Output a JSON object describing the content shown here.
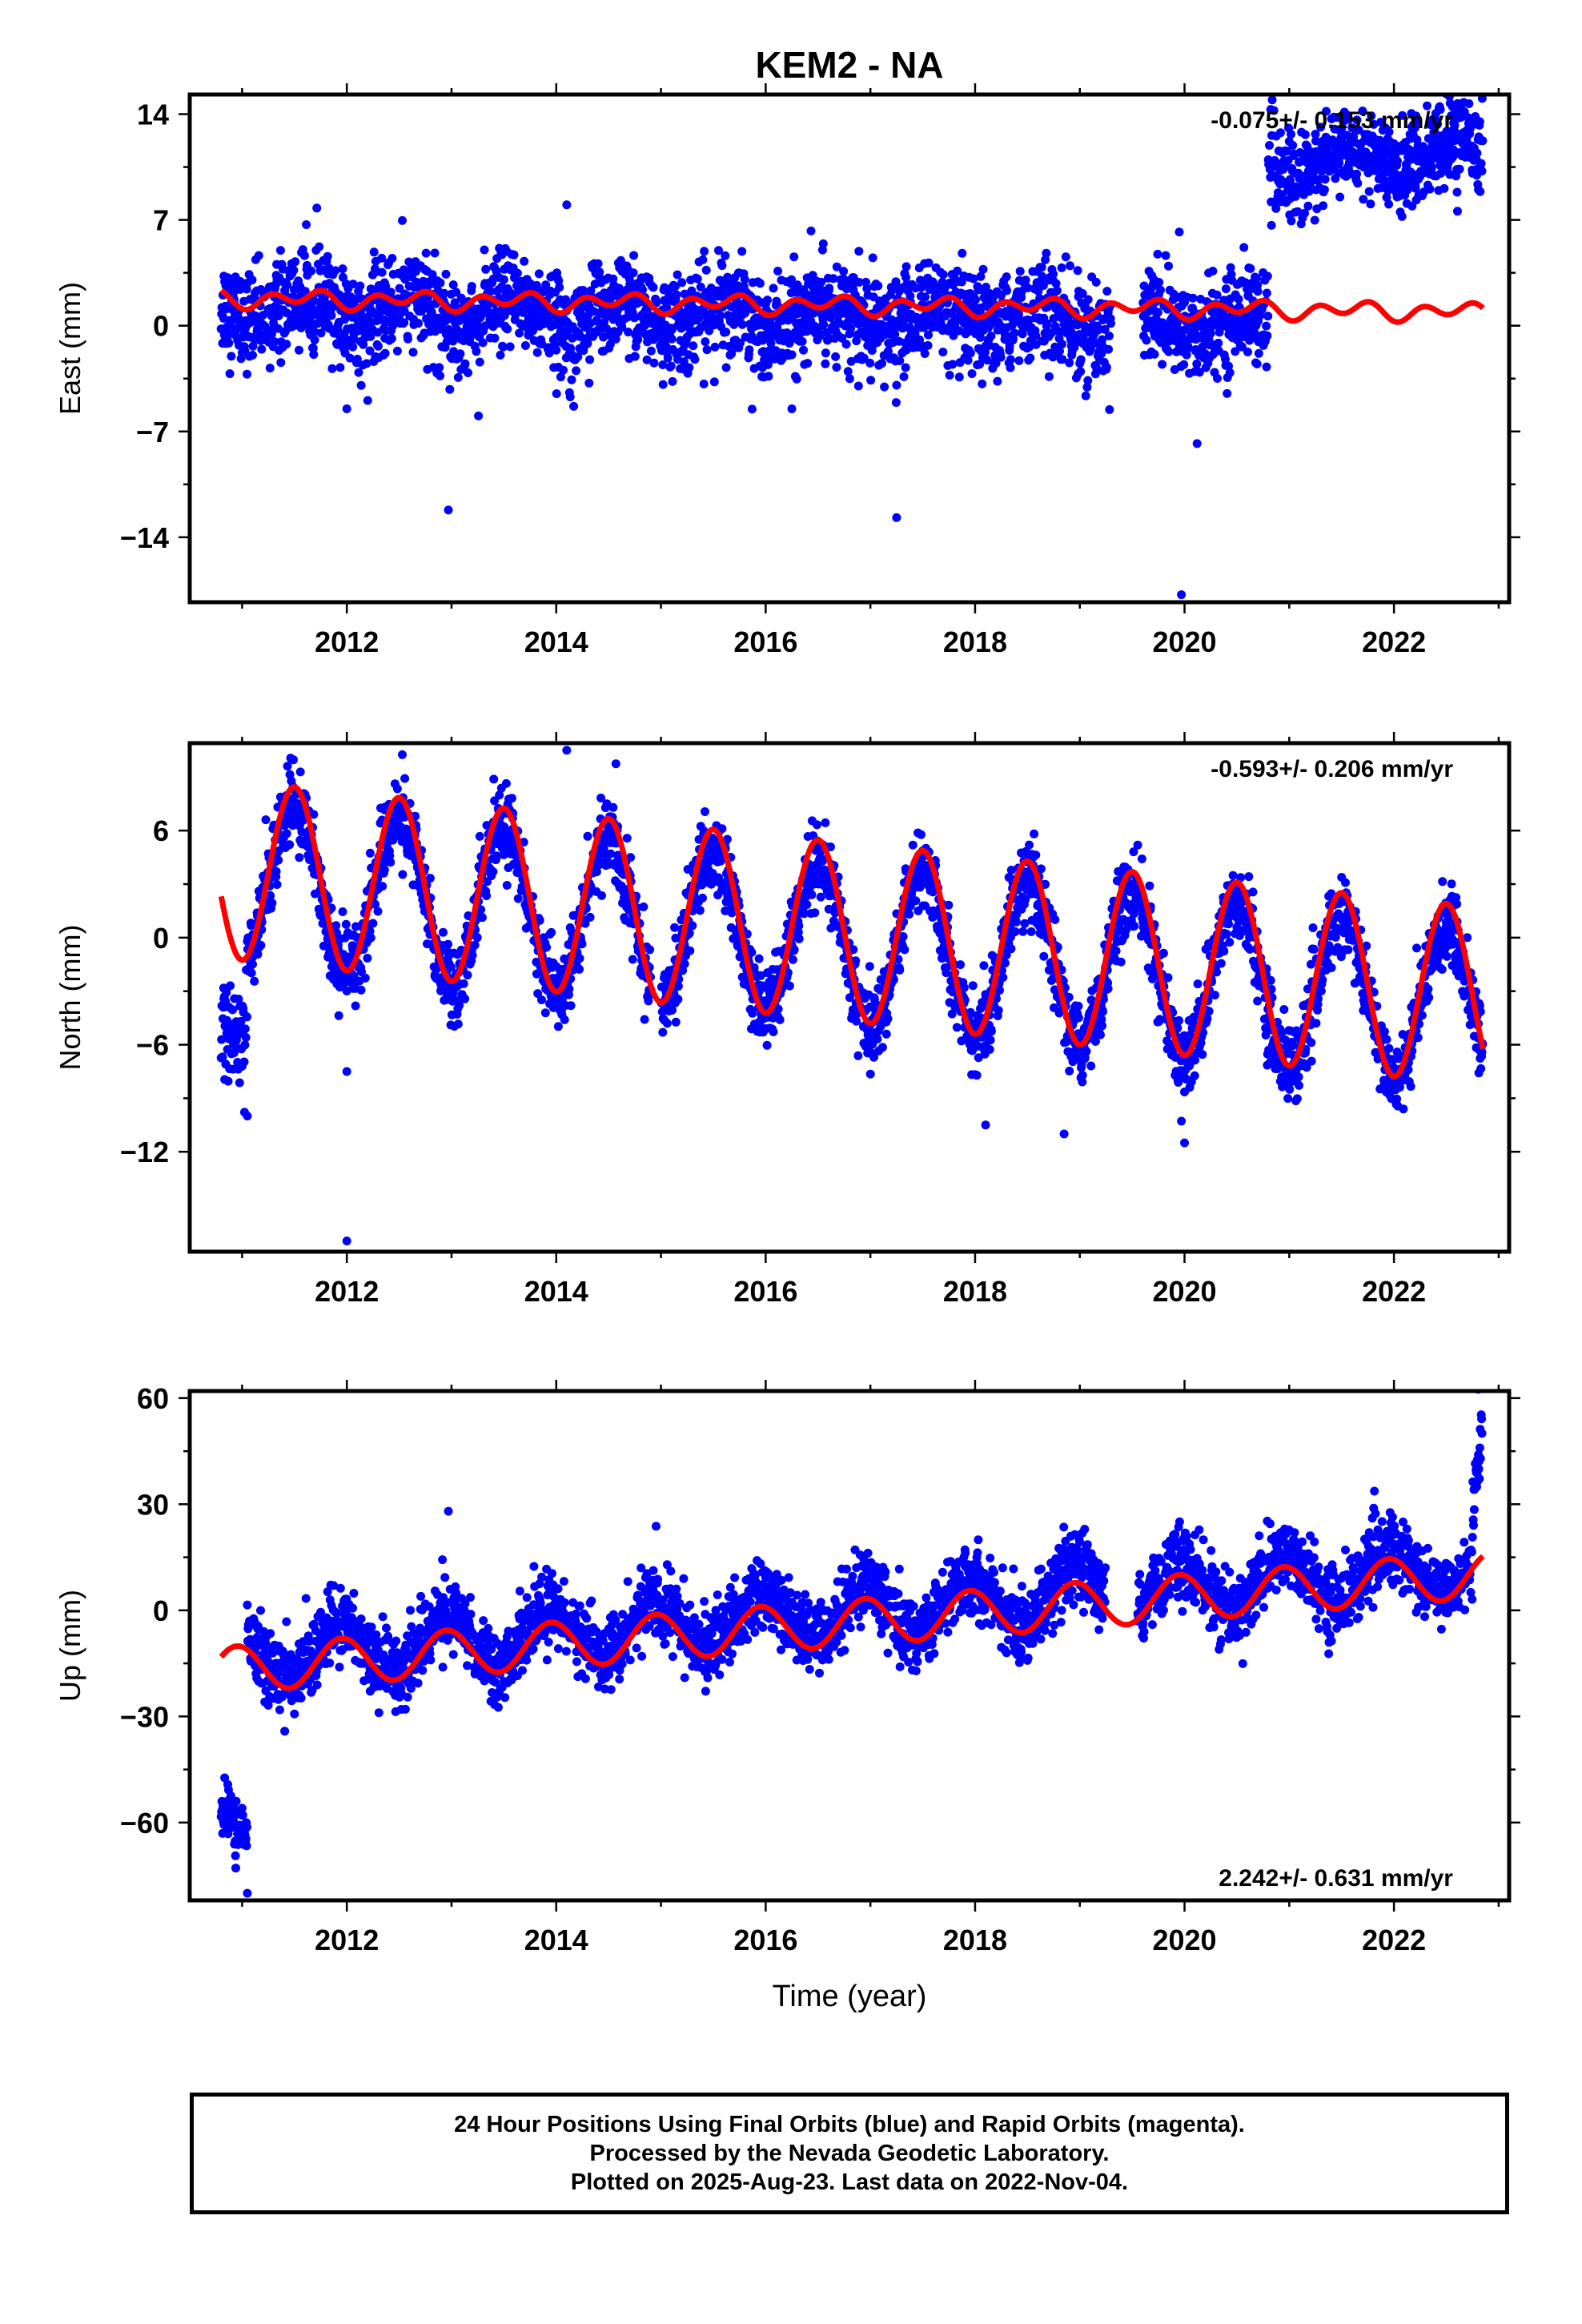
{
  "title": "KEM2 - NA",
  "colors": {
    "data": "#0000ff",
    "model": "#ff0000",
    "frame": "#000000"
  },
  "footer": {
    "lines": [
      "24 Hour Positions Using Final Orbits (blue) and Rapid Orbits (magenta).",
      "Processed by the Nevada Geodetic Laboratory.",
      "Plotted on 2025-Aug-23. Last data on 2022-Nov-04."
    ]
  },
  "chart_data": [
    {
      "type": "scatter",
      "panel": "east",
      "title": "KEM2 - NA",
      "ylabel": "East (mm)",
      "xlabel": "",
      "xlim": [
        2010.5,
        2023.1
      ],
      "ylim": [
        -18.3,
        15.3
      ],
      "xticks": [
        2012,
        2014,
        2016,
        2018,
        2020,
        2022
      ],
      "yticks": [
        -14,
        -7,
        0,
        7,
        14
      ],
      "ytick_labels": [
        "−14",
        "−7",
        "0",
        "7",
        "14"
      ],
      "annotation": "-0.075+/- 0.153 mm/yr",
      "annotation_position": "top-right",
      "series": [
        {
          "kind": "points",
          "description_of_points": "daily positions",
          "x_range": [
            2010.8,
            2022.85
          ],
          "segments": [
            {
              "x0": 2010.8,
              "x1": 2020.8,
              "trend": [
                1.2,
                0.0
              ],
              "noise": 1.6,
              "seasonal_amp": 0.8
            },
            {
              "x0": 2020.8,
              "x1": 2022.85,
              "trend": [
                10.5,
                11.5
              ],
              "noise": 1.5,
              "seasonal_amp": 0.8
            }
          ],
          "gaps": [
            [
              2019.3,
              2019.6
            ]
          ],
          "outliers": [
            [
              2012.97,
              -12.2
            ],
            [
              2014.1,
              8.0
            ],
            [
              2017.25,
              -12.7
            ],
            [
              2019.97,
              -17.8
            ],
            [
              2019.95,
              6.2
            ],
            [
              2020.12,
              -7.8
            ],
            [
              2012.0,
              -5.5
            ],
            [
              2016.25,
              -5.5
            ]
          ]
        },
        {
          "kind": "model",
          "description": "trend + annual + semiannual fit",
          "x_range": [
            2010.8,
            2022.85
          ],
          "offset": 1.35,
          "rate": -0.075,
          "ref_year": 2016.8,
          "annual_amp": 0.3,
          "annual_phase": 0.35,
          "semiannual_amp": 0.45,
          "semiannual_phase": 0.15
        }
      ]
    },
    {
      "type": "scatter",
      "panel": "north",
      "ylabel": "North (mm)",
      "xlabel": "",
      "xlim": [
        2010.5,
        2023.1
      ],
      "ylim": [
        -17.6,
        10.9
      ],
      "xticks": [
        2012,
        2014,
        2016,
        2018,
        2020,
        2022
      ],
      "yticks": [
        -12,
        -6,
        0,
        6
      ],
      "ytick_labels": [
        "−12",
        "−6",
        "0",
        "6"
      ],
      "annotation": "-0.593+/- 0.206 mm/yr",
      "annotation_position": "top-right",
      "series": [
        {
          "kind": "points",
          "x_range": [
            2010.8,
            2022.85
          ],
          "segments": [
            {
              "x0": 2010.8,
              "x1": 2011.05,
              "trend": [
                -4.5,
                -6.0
              ],
              "noise": 1.3,
              "seasonal_amp": 0.0
            },
            {
              "x0": 2011.05,
              "x1": 2022.85,
              "trend": [
                3.2,
                -4.0
              ],
              "noise": 1.1,
              "seasonal_amp": 4.4
            }
          ],
          "gaps": [
            [
              2014.9,
              2015.0
            ]
          ],
          "outliers": [
            [
              2012.0,
              -17.0
            ],
            [
              2014.1,
              10.5
            ],
            [
              2011.05,
              -10.0
            ],
            [
              2018.1,
              -10.5
            ],
            [
              2018.85,
              -11.0
            ],
            [
              2020.0,
              -11.5
            ],
            [
              2012.0,
              -7.5
            ]
          ]
        },
        {
          "kind": "model",
          "x_range": [
            2010.8,
            2022.85
          ],
          "offset": 0.3,
          "rate": -0.593,
          "ref_year": 2016.8,
          "annual_amp": 5.0,
          "annual_phase": 0.25,
          "semiannual_amp": 0.0,
          "semiannual_phase": 0.0
        }
      ]
    },
    {
      "type": "scatter",
      "panel": "up",
      "ylabel": "Up (mm)",
      "xlabel": "Time (year)",
      "xlim": [
        2010.5,
        2023.1
      ],
      "ylim": [
        -82.0,
        62.0
      ],
      "xticks": [
        2012,
        2014,
        2016,
        2018,
        2020,
        2022
      ],
      "yticks": [
        -60,
        -30,
        0,
        30,
        60
      ],
      "ytick_labels": [
        "−60",
        "−30",
        "0",
        "30",
        "60"
      ],
      "annotation": "2.242+/- 0.631 mm/yr",
      "annotation_position": "bottom-right",
      "series": [
        {
          "kind": "points",
          "x_range": [
            2010.8,
            2022.85
          ],
          "segments": [
            {
              "x0": 2010.8,
              "x1": 2011.05,
              "trend": [
                -55.0,
                -65.0
              ],
              "noise": 4.0,
              "seasonal_amp": 0.0
            },
            {
              "x0": 2011.05,
              "x1": 2022.75,
              "trend": [
                -13.0,
                12.0
              ],
              "noise": 5.0,
              "seasonal_amp": 7.0
            },
            {
              "x0": 2022.75,
              "x1": 2022.85,
              "trend": [
                25.0,
                55.0
              ],
              "noise": 6.0,
              "seasonal_amp": 0.0
            }
          ],
          "gaps": [
            [
              2019.25,
              2019.55
            ]
          ],
          "outliers": [
            [
              2012.97,
              28.0
            ],
            [
              2011.05,
              -80.0
            ]
          ]
        },
        {
          "kind": "model",
          "x_range": [
            2010.8,
            2022.85
          ],
          "offset": -3.5,
          "rate": 2.242,
          "ref_year": 2016.8,
          "annual_amp": 6.5,
          "annual_phase": 0.7,
          "semiannual_amp": 0.0,
          "semiannual_phase": 0.0
        }
      ]
    }
  ]
}
